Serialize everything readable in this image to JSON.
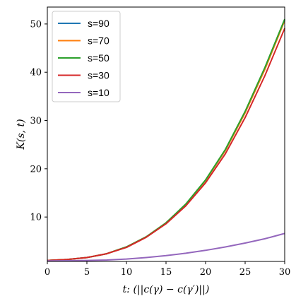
{
  "chart_data": {
    "type": "line",
    "xlabel": "t: (||c(γ) − c(γ′)||)",
    "ylabel": "K(s, t)",
    "xlim": [
      0,
      30
    ],
    "ylim": [
      0.8,
      53.5
    ],
    "xticks": [
      0,
      5,
      10,
      15,
      20,
      25,
      30
    ],
    "yticks": [
      10,
      20,
      30,
      40,
      50
    ],
    "grid": false,
    "legend_position": "top-left",
    "series": [
      {
        "name": "s=90",
        "color": "#1f77b4",
        "x": [
          0,
          2.5,
          5,
          7.5,
          10,
          12.5,
          15,
          17.5,
          20,
          22.5,
          25,
          27.5,
          30
        ],
        "y": [
          1.0,
          1.2,
          1.6,
          2.4,
          3.8,
          5.9,
          8.8,
          12.6,
          17.6,
          23.8,
          31.7,
          40.7,
          50.8
        ]
      },
      {
        "name": "s=70",
        "color": "#ff7f0e",
        "x": [
          0,
          2.5,
          5,
          7.5,
          10,
          12.5,
          15,
          17.5,
          20,
          22.5,
          25,
          27.5,
          30
        ],
        "y": [
          1.0,
          1.2,
          1.6,
          2.4,
          3.8,
          5.9,
          8.8,
          12.6,
          17.6,
          23.8,
          31.6,
          40.6,
          50.7
        ]
      },
      {
        "name": "s=50",
        "color": "#2ca02c",
        "x": [
          0,
          2.5,
          5,
          7.5,
          10,
          12.5,
          15,
          17.5,
          20,
          22.5,
          25,
          27.5,
          30
        ],
        "y": [
          1.0,
          1.2,
          1.6,
          2.4,
          3.8,
          5.9,
          8.8,
          12.7,
          17.7,
          24.0,
          31.9,
          41.0,
          51.0
        ]
      },
      {
        "name": "s=30",
        "color": "#d62728",
        "x": [
          0,
          2.5,
          5,
          7.5,
          10,
          12.5,
          15,
          17.5,
          20,
          22.5,
          25,
          27.5,
          30
        ],
        "y": [
          1.0,
          1.2,
          1.6,
          2.4,
          3.7,
          5.8,
          8.6,
          12.3,
          17.1,
          23.1,
          30.6,
          39.3,
          49.1
        ]
      },
      {
        "name": "s=10",
        "color": "#9467bd",
        "x": [
          0,
          2.5,
          5,
          7.5,
          10,
          12.5,
          15,
          17.5,
          20,
          22.5,
          25,
          27.5,
          30
        ],
        "y": [
          0.9,
          0.95,
          1.0,
          1.1,
          1.3,
          1.6,
          2.0,
          2.5,
          3.1,
          3.8,
          4.6,
          5.5,
          6.6
        ]
      }
    ]
  }
}
